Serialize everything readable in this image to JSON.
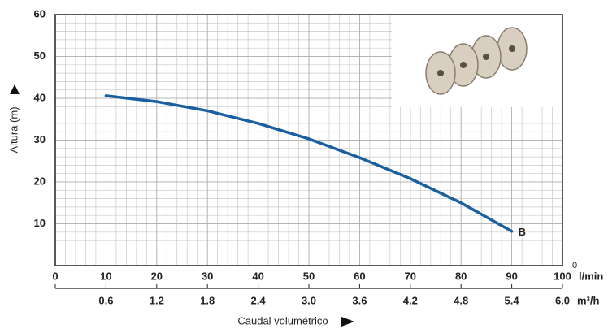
{
  "chart_data": {
    "type": "line",
    "y_axis_label": "Altura (m)",
    "x_axis_label": "Caudal volumétrico",
    "x_unit": "l/min",
    "x2_unit": "m³/h",
    "corner_label": "0",
    "xlim": [
      0,
      100
    ],
    "xticks": [
      0,
      10,
      20,
      30,
      40,
      50,
      60,
      70,
      80,
      90,
      100
    ],
    "x2lim": [
      0,
      6
    ],
    "x2ticks": [
      0.6,
      1.2,
      1.8,
      2.4,
      {
        "value": 3,
        "label": "3.0"
      },
      3.6,
      4.2,
      4.8,
      5.4,
      {
        "value": 6,
        "label": "6.0"
      }
    ],
    "ylim": [
      0,
      60
    ],
    "yticks": [
      10,
      20,
      30,
      40,
      50,
      60
    ],
    "grid": true,
    "series": [
      {
        "name": "B",
        "color": "#1a5fa0",
        "x": [
          10,
          20,
          30,
          40,
          50,
          60,
          70,
          80,
          90
        ],
        "values": [
          40.6,
          39.2,
          37,
          34,
          30.3,
          25.8,
          20.8,
          15,
          8.2
        ]
      }
    ]
  }
}
